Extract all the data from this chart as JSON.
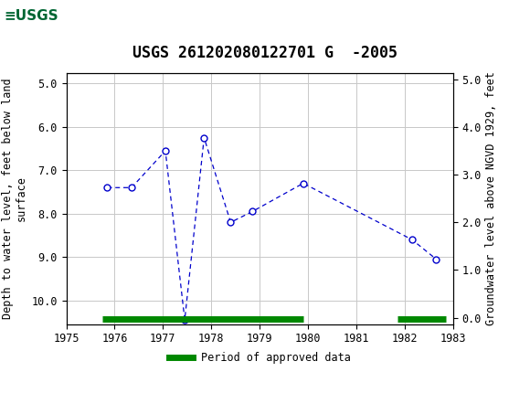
{
  "title": "USGS 261202080122701 G  -2005",
  "ylabel_left": "Depth to water level, feet below land\nsurface",
  "ylabel_right": "Groundwater level above NGVD 1929, feet",
  "xlim": [
    1975,
    1983
  ],
  "ylim_left": [
    10.55,
    4.75
  ],
  "ylim_right": [
    -0.1375,
    5.1375
  ],
  "yticks_left": [
    5.0,
    6.0,
    7.0,
    8.0,
    9.0,
    10.0
  ],
  "yticks_right": [
    0.0,
    1.0,
    2.0,
    3.0,
    4.0,
    5.0
  ],
  "xticks": [
    1975,
    1976,
    1977,
    1978,
    1979,
    1980,
    1981,
    1982,
    1983
  ],
  "data_x": [
    1975.85,
    1976.35,
    1977.05,
    1977.45,
    1977.85,
    1978.4,
    1978.85,
    1979.9,
    1982.15,
    1982.65
  ],
  "data_y": [
    7.4,
    7.4,
    6.55,
    10.45,
    6.25,
    8.2,
    7.95,
    7.3,
    8.6,
    9.05
  ],
  "approved_bars": [
    {
      "x_start": 1975.75,
      "x_end": 1979.9
    },
    {
      "x_start": 1981.85,
      "x_end": 1982.85
    }
  ],
  "line_color": "#0000cc",
  "marker_color": "#0000cc",
  "approved_color": "#008800",
  "background_color": "#ffffff",
  "header_color": "#006633",
  "grid_color": "#c8c8c8",
  "title_fontsize": 12,
  "axis_label_fontsize": 8.5,
  "tick_fontsize": 8.5
}
